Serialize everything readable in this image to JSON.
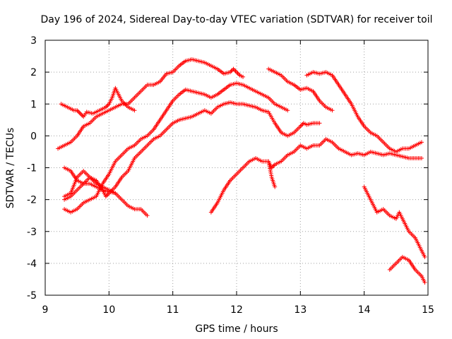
{
  "chart_data": {
    "type": "scatter",
    "title": "Day 196 of 2024, Sidereal Day-to-day VTEC variation (SDTVAR) for receiver toil",
    "xlabel": "GPS time / hours",
    "ylabel": "SDTVAR / TECUs",
    "xlim": [
      9,
      15
    ],
    "ylim": [
      -5,
      3
    ],
    "xticks": [
      "9",
      "10",
      "11",
      "12",
      "13",
      "14",
      "15"
    ],
    "yticks": [
      "3",
      "2",
      "1",
      "0",
      "-1",
      "-2",
      "-3",
      "-4",
      "-5"
    ],
    "grid": true,
    "marker": "+",
    "color": "#ff0000",
    "series": [
      {
        "name": "s1",
        "points": [
          [
            9.2,
            -0.4
          ],
          [
            9.3,
            -0.3
          ],
          [
            9.4,
            -0.2
          ],
          [
            9.5,
            0.0
          ],
          [
            9.6,
            0.3
          ],
          [
            9.7,
            0.4
          ],
          [
            9.8,
            0.6
          ],
          [
            9.9,
            0.7
          ],
          [
            10.0,
            0.8
          ],
          [
            10.1,
            0.9
          ],
          [
            10.2,
            1.0
          ],
          [
            10.3,
            1.0
          ],
          [
            10.4,
            1.2
          ],
          [
            10.5,
            1.4
          ],
          [
            10.6,
            1.6
          ],
          [
            10.7,
            1.6
          ],
          [
            10.8,
            1.7
          ],
          [
            10.9,
            1.95
          ],
          [
            11.0,
            2.0
          ],
          [
            11.1,
            2.2
          ],
          [
            11.2,
            2.35
          ],
          [
            11.3,
            2.4
          ],
          [
            11.4,
            2.35
          ],
          [
            11.5,
            2.3
          ],
          [
            11.6,
            2.2
          ],
          [
            11.7,
            2.1
          ],
          [
            11.8,
            1.95
          ],
          [
            11.9,
            2.0
          ],
          [
            11.95,
            2.1
          ],
          [
            12.0,
            2.0
          ],
          [
            12.05,
            1.9
          ],
          [
            12.1,
            1.85
          ]
        ]
      },
      {
        "name": "s2",
        "points": [
          [
            9.25,
            1.0
          ],
          [
            9.35,
            0.9
          ],
          [
            9.45,
            0.8
          ],
          [
            9.5,
            0.8
          ],
          [
            9.55,
            0.7
          ],
          [
            9.6,
            0.6
          ],
          [
            9.65,
            0.75
          ],
          [
            9.75,
            0.7
          ],
          [
            9.85,
            0.8
          ],
          [
            9.95,
            0.9
          ],
          [
            10.0,
            1.0
          ],
          [
            10.05,
            1.2
          ],
          [
            10.1,
            1.5
          ],
          [
            10.15,
            1.3
          ],
          [
            10.2,
            1.1
          ],
          [
            10.3,
            0.9
          ],
          [
            10.4,
            0.8
          ]
        ]
      },
      {
        "name": "s3",
        "points": [
          [
            9.3,
            -2.0
          ],
          [
            9.4,
            -1.9
          ],
          [
            9.5,
            -1.7
          ],
          [
            9.6,
            -1.5
          ],
          [
            9.7,
            -1.3
          ],
          [
            9.8,
            -1.4
          ],
          [
            9.9,
            -1.7
          ],
          [
            9.95,
            -1.9
          ],
          [
            10.0,
            -1.8
          ],
          [
            10.1,
            -1.6
          ],
          [
            10.2,
            -1.3
          ],
          [
            10.3,
            -1.1
          ],
          [
            10.4,
            -0.7
          ],
          [
            10.5,
            -0.5
          ],
          [
            10.6,
            -0.3
          ],
          [
            10.7,
            -0.1
          ],
          [
            10.8,
            0.0
          ],
          [
            10.9,
            0.2
          ],
          [
            11.0,
            0.4
          ],
          [
            11.1,
            0.5
          ],
          [
            11.2,
            0.55
          ],
          [
            11.3,
            0.6
          ],
          [
            11.4,
            0.7
          ],
          [
            11.5,
            0.8
          ],
          [
            11.6,
            0.7
          ],
          [
            11.7,
            0.9
          ],
          [
            11.8,
            1.0
          ],
          [
            11.9,
            1.05
          ],
          [
            12.0,
            1.0
          ],
          [
            12.1,
            1.0
          ],
          [
            12.2,
            0.95
          ],
          [
            12.3,
            0.9
          ],
          [
            12.4,
            0.8
          ],
          [
            12.5,
            0.75
          ],
          [
            12.6,
            0.4
          ],
          [
            12.7,
            0.1
          ],
          [
            12.8,
            0.0
          ],
          [
            12.9,
            0.1
          ],
          [
            13.0,
            0.3
          ],
          [
            13.05,
            0.4
          ],
          [
            13.1,
            0.35
          ],
          [
            13.2,
            0.4
          ],
          [
            13.3,
            0.4
          ]
        ]
      },
      {
        "name": "s4",
        "points": [
          [
            9.3,
            -2.3
          ],
          [
            9.4,
            -2.4
          ],
          [
            9.5,
            -2.3
          ],
          [
            9.6,
            -2.1
          ],
          [
            9.7,
            -2.0
          ],
          [
            9.8,
            -1.9
          ],
          [
            9.9,
            -1.5
          ],
          [
            10.0,
            -1.2
          ],
          [
            10.1,
            -0.8
          ],
          [
            10.2,
            -0.6
          ],
          [
            10.3,
            -0.4
          ],
          [
            10.4,
            -0.3
          ],
          [
            10.5,
            -0.1
          ],
          [
            10.6,
            0.0
          ],
          [
            10.7,
            0.2
          ],
          [
            10.8,
            0.5
          ],
          [
            10.9,
            0.8
          ],
          [
            11.0,
            1.1
          ],
          [
            11.1,
            1.3
          ],
          [
            11.2,
            1.45
          ],
          [
            11.3,
            1.4
          ],
          [
            11.4,
            1.35
          ],
          [
            11.5,
            1.3
          ],
          [
            11.6,
            1.2
          ],
          [
            11.7,
            1.3
          ],
          [
            11.8,
            1.45
          ],
          [
            11.9,
            1.6
          ],
          [
            12.0,
            1.65
          ],
          [
            12.1,
            1.6
          ],
          [
            12.2,
            1.5
          ],
          [
            12.3,
            1.4
          ],
          [
            12.4,
            1.3
          ],
          [
            12.5,
            1.2
          ],
          [
            12.6,
            1.0
          ],
          [
            12.7,
            0.9
          ],
          [
            12.8,
            0.8
          ]
        ]
      },
      {
        "name": "s5",
        "points": [
          [
            9.3,
            -1.0
          ],
          [
            9.4,
            -1.1
          ],
          [
            9.5,
            -1.4
          ],
          [
            9.6,
            -1.5
          ],
          [
            9.7,
            -1.5
          ],
          [
            9.8,
            -1.6
          ],
          [
            9.9,
            -1.7
          ],
          [
            10.0,
            -1.75
          ],
          [
            10.1,
            -1.8
          ],
          [
            10.2,
            -2.0
          ],
          [
            10.3,
            -2.2
          ],
          [
            10.4,
            -2.3
          ],
          [
            10.5,
            -2.3
          ],
          [
            10.6,
            -2.5
          ]
        ]
      },
      {
        "name": "s6",
        "points": [
          [
            9.3,
            -1.9
          ],
          [
            9.4,
            -1.8
          ],
          [
            9.5,
            -1.3
          ],
          [
            9.6,
            -1.1
          ],
          [
            9.7,
            -1.3
          ],
          [
            9.8,
            -1.5
          ],
          [
            9.9,
            -1.6
          ],
          [
            10.0,
            -1.7
          ],
          [
            10.1,
            -1.8
          ]
        ]
      },
      {
        "name": "s7",
        "points": [
          [
            11.6,
            -2.4
          ],
          [
            11.7,
            -2.1
          ],
          [
            11.8,
            -1.7
          ],
          [
            11.9,
            -1.4
          ],
          [
            12.0,
            -1.2
          ],
          [
            12.1,
            -1.0
          ],
          [
            12.2,
            -0.8
          ],
          [
            12.3,
            -0.7
          ],
          [
            12.4,
            -0.8
          ],
          [
            12.5,
            -0.8
          ],
          [
            12.55,
            -1.0
          ],
          [
            12.6,
            -0.9
          ],
          [
            12.7,
            -0.8
          ],
          [
            12.8,
            -0.6
          ],
          [
            12.9,
            -0.5
          ],
          [
            13.0,
            -0.3
          ],
          [
            13.1,
            -0.4
          ],
          [
            13.2,
            -0.3
          ],
          [
            13.3,
            -0.3
          ],
          [
            13.4,
            -0.1
          ],
          [
            13.5,
            -0.2
          ],
          [
            13.6,
            -0.4
          ],
          [
            13.7,
            -0.5
          ],
          [
            13.8,
            -0.6
          ],
          [
            13.9,
            -0.55
          ],
          [
            14.0,
            -0.6
          ],
          [
            14.1,
            -0.5
          ],
          [
            14.2,
            -0.55
          ],
          [
            14.3,
            -0.6
          ],
          [
            14.4,
            -0.55
          ],
          [
            14.5,
            -0.6
          ],
          [
            14.6,
            -0.65
          ],
          [
            14.7,
            -0.7
          ],
          [
            14.8,
            -0.7
          ],
          [
            14.9,
            -0.7
          ]
        ]
      },
      {
        "name": "s8",
        "points": [
          [
            12.5,
            -0.8
          ],
          [
            12.55,
            -1.3
          ],
          [
            12.6,
            -1.6
          ]
        ]
      },
      {
        "name": "s9",
        "points": [
          [
            12.5,
            2.1
          ],
          [
            12.6,
            2.0
          ],
          [
            12.7,
            1.9
          ],
          [
            12.8,
            1.7
          ],
          [
            12.9,
            1.6
          ],
          [
            13.0,
            1.45
          ],
          [
            13.1,
            1.5
          ],
          [
            13.2,
            1.4
          ],
          [
            13.3,
            1.1
          ],
          [
            13.4,
            0.9
          ],
          [
            13.5,
            0.8
          ]
        ]
      },
      {
        "name": "s10",
        "points": [
          [
            13.1,
            1.9
          ],
          [
            13.2,
            2.0
          ],
          [
            13.3,
            1.95
          ],
          [
            13.4,
            2.0
          ],
          [
            13.5,
            1.9
          ],
          [
            13.6,
            1.6
          ],
          [
            13.7,
            1.3
          ],
          [
            13.8,
            1.0
          ],
          [
            13.9,
            0.6
          ],
          [
            14.0,
            0.3
          ],
          [
            14.1,
            0.1
          ],
          [
            14.2,
            0.0
          ],
          [
            14.3,
            -0.2
          ],
          [
            14.4,
            -0.4
          ],
          [
            14.5,
            -0.5
          ],
          [
            14.6,
            -0.4
          ],
          [
            14.7,
            -0.4
          ],
          [
            14.8,
            -0.3
          ],
          [
            14.9,
            -0.2
          ]
        ]
      },
      {
        "name": "s11",
        "points": [
          [
            14.0,
            -1.6
          ],
          [
            14.1,
            -2.0
          ],
          [
            14.2,
            -2.4
          ],
          [
            14.3,
            -2.3
          ],
          [
            14.4,
            -2.5
          ],
          [
            14.5,
            -2.6
          ],
          [
            14.55,
            -2.4
          ],
          [
            14.6,
            -2.6
          ],
          [
            14.7,
            -3.0
          ],
          [
            14.8,
            -3.2
          ],
          [
            14.9,
            -3.6
          ],
          [
            14.95,
            -3.8
          ]
        ]
      },
      {
        "name": "s12",
        "points": [
          [
            14.4,
            -4.2
          ],
          [
            14.5,
            -4.0
          ],
          [
            14.6,
            -3.8
          ],
          [
            14.7,
            -3.9
          ],
          [
            14.8,
            -4.2
          ],
          [
            14.9,
            -4.4
          ],
          [
            14.95,
            -4.6
          ]
        ]
      }
    ]
  }
}
